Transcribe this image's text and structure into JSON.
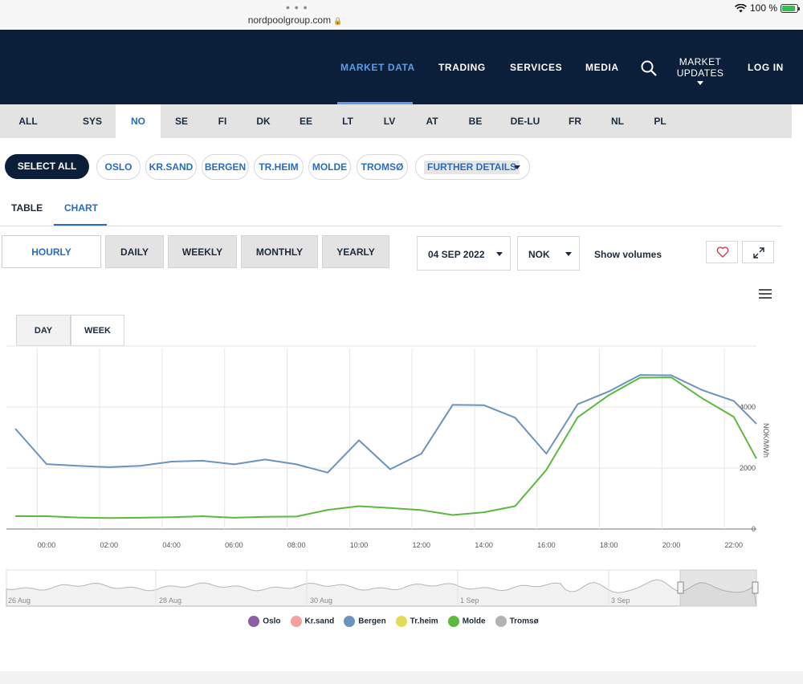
{
  "browser": {
    "url": "nordpoolgroup.com",
    "battery": "100 %"
  },
  "nav": {
    "items": [
      "MARKET DATA",
      "TRADING",
      "SERVICES",
      "MEDIA"
    ],
    "market_updates": "MARKET UPDATES",
    "login": "LOG IN"
  },
  "areas": [
    "ALL",
    "SYS",
    "NO",
    "SE",
    "FI",
    "DK",
    "EE",
    "LT",
    "LV",
    "AT",
    "BE",
    "DE-LU",
    "FR",
    "NL",
    "PL"
  ],
  "active_area": "NO",
  "filters": {
    "select_all": "SELECT ALL",
    "chips": [
      "OSLO",
      "KR.SAND",
      "BERGEN",
      "TR.HEIM",
      "MOLDE",
      "TROMSØ"
    ],
    "further_details": "FURTHER DETAILS"
  },
  "view_tabs": {
    "table": "TABLE",
    "chart": "CHART"
  },
  "resolutions": [
    "HOURLY",
    "DAILY",
    "WEEKLY",
    "MONTHLY",
    "YEARLY"
  ],
  "date_select": "04 SEP 2022",
  "currency_select": "NOK",
  "show_volumes": "Show volumes",
  "day_week": {
    "day": "DAY",
    "week": "WEEK"
  },
  "colors": {
    "navy": "#0c1f3a",
    "accent": "#2a6bbf",
    "bergen": "#6a93bd",
    "molde": "#5cb83f"
  },
  "chart_data": {
    "type": "line",
    "ylabel": "NOK/MWh",
    "y_ticks": [
      "0",
      "2000",
      "4000"
    ],
    "ylim": [
      0,
      6000
    ],
    "x_ticks": [
      "00:00",
      "02:00",
      "04:00",
      "06:00",
      "08:00",
      "10:00",
      "12:00",
      "14:00",
      "16:00",
      "18:00",
      "20:00",
      "22:00"
    ],
    "x_hours": [
      -1,
      0,
      1,
      2,
      3,
      4,
      5,
      6,
      7,
      8,
      9,
      10,
      11,
      12,
      13,
      14,
      15,
      16,
      17,
      18,
      19,
      20,
      21,
      22,
      23
    ],
    "series": [
      {
        "name": "Bergen",
        "color": "#6a93bd",
        "values": [
          3290,
          2130,
          2070,
          2030,
          2070,
          2210,
          2240,
          2120,
          2280,
          2120,
          1850,
          2910,
          1960,
          2470,
          4070,
          4060,
          3650,
          2470,
          4090,
          4510,
          5050,
          5040,
          4550,
          4200,
          3450
        ]
      },
      {
        "name": "Molde",
        "color": "#5cb83f",
        "values": [
          420,
          420,
          380,
          360,
          370,
          390,
          420,
          370,
          400,
          410,
          630,
          750,
          690,
          620,
          460,
          550,
          750,
          1940,
          3660,
          4390,
          4960,
          4970,
          4280,
          3680,
          2310
        ]
      }
    ],
    "legend": [
      {
        "name": "Oslo",
        "color": "#8e5ea8"
      },
      {
        "name": "Kr.sand",
        "color": "#f2a0a0"
      },
      {
        "name": "Bergen",
        "color": "#6a93bd"
      },
      {
        "name": "Tr.heim",
        "color": "#e3dc5a"
      },
      {
        "name": "Molde",
        "color": "#5cb83f"
      },
      {
        "name": "Tromsø",
        "color": "#b3b3b3"
      }
    ],
    "navigator_labels": [
      "26 Aug",
      "28 Aug",
      "30 Aug",
      "1 Sep",
      "3 Sep"
    ],
    "grid": true
  }
}
